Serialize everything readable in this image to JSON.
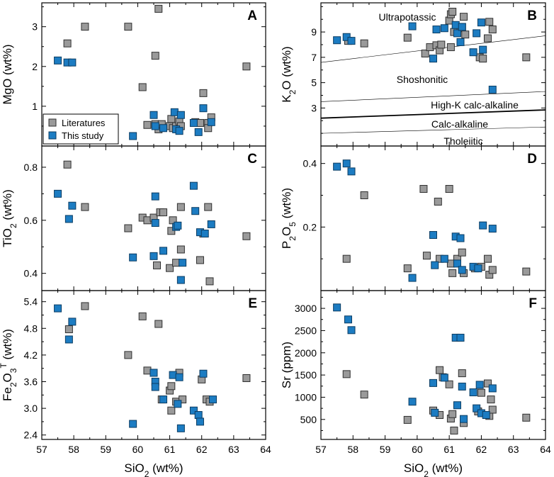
{
  "colors": {
    "literatures": "#9a9a9a",
    "this_study": "#1c7cc2"
  },
  "legend": {
    "literatures": "Literatures",
    "this_study": "This study"
  },
  "x_axis": {
    "label_main": "SiO",
    "label_sub": "2",
    "label_unit": " (wt%)",
    "ticks": [
      57,
      58,
      59,
      60,
      61,
      62,
      63,
      64
    ],
    "xlim": [
      57,
      64
    ]
  },
  "chart_data": [
    {
      "type": "scatter",
      "id": "A",
      "letter": "A",
      "ylabel": {
        "main": "MgO (wt%)"
      },
      "ylim": [
        0,
        3.6
      ],
      "yticks": [
        1,
        2,
        3
      ],
      "series": [
        {
          "name": "Literatures",
          "points": [
            [
              57.8,
              2.58
            ],
            [
              58.35,
              3.0
            ],
            [
              59.7,
              3.0
            ],
            [
              60.55,
              2.27
            ],
            [
              60.65,
              3.45
            ],
            [
              60.15,
              1.48
            ],
            [
              60.3,
              0.53
            ],
            [
              60.55,
              0.55
            ],
            [
              60.65,
              0.42
            ],
            [
              60.75,
              0.55
            ],
            [
              61.0,
              0.5
            ],
            [
              61.05,
              0.68
            ],
            [
              61.1,
              0.45
            ],
            [
              61.2,
              0.5
            ],
            [
              61.3,
              0.62
            ],
            [
              61.35,
              0.5
            ],
            [
              61.8,
              0.6
            ],
            [
              61.95,
              0.58
            ],
            [
              62.05,
              1.33
            ],
            [
              62.2,
              0.58
            ],
            [
              62.2,
              0.45
            ],
            [
              62.3,
              0.72
            ],
            [
              63.4,
              2.0
            ]
          ]
        },
        {
          "name": "This study",
          "points": [
            [
              57.5,
              2.15
            ],
            [
              57.8,
              2.1
            ],
            [
              57.95,
              2.1
            ],
            [
              59.85,
              0.25
            ],
            [
              60.5,
              0.78
            ],
            [
              60.55,
              0.5
            ],
            [
              60.8,
              0.45
            ],
            [
              61.15,
              0.85
            ],
            [
              61.2,
              0.42
            ],
            [
              61.3,
              0.38
            ],
            [
              61.35,
              0.78
            ],
            [
              61.75,
              0.58
            ],
            [
              61.9,
              0.35
            ],
            [
              62.05,
              0.95
            ],
            [
              62.3,
              0.6
            ]
          ]
        }
      ]
    },
    {
      "type": "scatter",
      "id": "B",
      "letter": "B",
      "ylabel": {
        "main": "K",
        "sub": "2",
        "tail": "O (wt%)"
      },
      "ylim": [
        0,
        11.3
      ],
      "yticks": [
        3,
        5,
        7,
        9
      ],
      "field_lines": [
        {
          "x": [
            57,
            64
          ],
          "y": [
            6.6,
            8.7
          ],
          "weight": "thin"
        },
        {
          "x": [
            57,
            64
          ],
          "y": [
            3.5,
            4.3
          ],
          "weight": "thin"
        },
        {
          "x": [
            57,
            64
          ],
          "y": [
            2.2,
            2.85
          ],
          "weight": "thick"
        },
        {
          "x": [
            57,
            64
          ],
          "y": [
            1.0,
            1.5
          ],
          "weight": "thin"
        }
      ],
      "field_labels": [
        "Ultrapotassic",
        "Shoshonitic",
        "High-K calc-alkaline",
        "Calc-alkaline",
        "Tholeiitic"
      ],
      "series": [
        {
          "name": "Literatures",
          "points": [
            [
              57.85,
              8.3
            ],
            [
              58.35,
              8.1
            ],
            [
              59.7,
              8.55
            ],
            [
              60.25,
              7.3
            ],
            [
              60.4,
              7.8
            ],
            [
              60.6,
              7.95
            ],
            [
              60.7,
              7.55
            ],
            [
              60.75,
              8.0
            ],
            [
              61.0,
              9.9
            ],
            [
              61.05,
              10.4
            ],
            [
              61.1,
              10.6
            ],
            [
              61.15,
              9.0
            ],
            [
              61.05,
              7.8
            ],
            [
              61.35,
              9.3
            ],
            [
              61.4,
              9.4
            ],
            [
              61.45,
              10.2
            ],
            [
              61.5,
              8.8
            ],
            [
              61.95,
              7.0
            ],
            [
              62.05,
              6.9
            ],
            [
              62.25,
              9.8
            ],
            [
              62.35,
              9.2
            ],
            [
              62.2,
              8.5
            ],
            [
              63.4,
              7.0
            ]
          ]
        },
        {
          "name": "This study",
          "points": [
            [
              57.5,
              8.35
            ],
            [
              57.8,
              8.6
            ],
            [
              57.95,
              8.3
            ],
            [
              59.85,
              9.45
            ],
            [
              60.5,
              6.9
            ],
            [
              60.6,
              9.2
            ],
            [
              60.85,
              9.3
            ],
            [
              61.2,
              9.55
            ],
            [
              61.25,
              8.9
            ],
            [
              61.35,
              8.2
            ],
            [
              61.4,
              9.4
            ],
            [
              61.75,
              7.4
            ],
            [
              61.85,
              8.9
            ],
            [
              62.0,
              9.75
            ],
            [
              62.05,
              7.6
            ],
            [
              62.35,
              4.45
            ]
          ]
        }
      ]
    },
    {
      "type": "scatter",
      "id": "C",
      "letter": "C",
      "ylabel": {
        "main": "TiO",
        "sub": "2",
        "tail": " (wt%)"
      },
      "ylim": [
        0.335,
        0.88
      ],
      "yticks": [
        0.4,
        0.6,
        0.8
      ],
      "series": [
        {
          "name": "Literatures",
          "points": [
            [
              57.8,
              0.81
            ],
            [
              58.35,
              0.65
            ],
            [
              59.7,
              0.57
            ],
            [
              60.15,
              0.61
            ],
            [
              60.3,
              0.6
            ],
            [
              60.5,
              0.61
            ],
            [
              60.6,
              0.43
            ],
            [
              60.7,
              0.63
            ],
            [
              60.8,
              0.63
            ],
            [
              61.0,
              0.42
            ],
            [
              61.05,
              0.56
            ],
            [
              61.1,
              0.6
            ],
            [
              61.2,
              0.44
            ],
            [
              61.35,
              0.49
            ],
            [
              61.35,
              0.65
            ],
            [
              61.95,
              0.45
            ],
            [
              62.05,
              0.55
            ],
            [
              62.2,
              0.65
            ],
            [
              62.25,
              0.37
            ],
            [
              63.4,
              0.54
            ]
          ]
        },
        {
          "name": "This study",
          "points": [
            [
              57.5,
              0.7
            ],
            [
              57.85,
              0.605
            ],
            [
              57.95,
              0.655
            ],
            [
              59.85,
              0.46
            ],
            [
              60.5,
              0.465
            ],
            [
              60.55,
              0.69
            ],
            [
              60.55,
              0.59
            ],
            [
              60.8,
              0.485
            ],
            [
              61.2,
              0.575
            ],
            [
              61.25,
              0.58
            ],
            [
              61.35,
              0.375
            ],
            [
              61.4,
              0.44
            ],
            [
              61.75,
              0.73
            ],
            [
              61.8,
              0.635
            ],
            [
              61.95,
              0.555
            ],
            [
              62.1,
              0.55
            ],
            [
              62.3,
              0.585
            ]
          ]
        }
      ]
    },
    {
      "type": "scatter",
      "id": "D",
      "letter": "D",
      "ylabel": {
        "main": "P",
        "sub": "2",
        "tail": "O",
        "sub2": "5",
        "tail2": " (wt%)"
      },
      "ylim": [
        0.0,
        0.455
      ],
      "yticks": [
        0.2,
        0.4
      ],
      "series": [
        {
          "name": "Literatures",
          "points": [
            [
              57.8,
              0.1
            ],
            [
              58.35,
              0.3
            ],
            [
              59.7,
              0.07
            ],
            [
              60.2,
              0.32
            ],
            [
              60.3,
              0.11
            ],
            [
              60.65,
              0.28
            ],
            [
              60.7,
              0.1
            ],
            [
              61.0,
              0.32
            ],
            [
              61.05,
              0.085
            ],
            [
              61.1,
              0.055
            ],
            [
              61.25,
              0.1
            ],
            [
              61.4,
              0.12
            ],
            [
              61.45,
              0.055
            ],
            [
              61.8,
              0.07
            ],
            [
              62.0,
              0.075
            ],
            [
              62.2,
              0.1
            ],
            [
              62.25,
              0.05
            ],
            [
              62.35,
              0.065
            ],
            [
              63.4,
              0.06
            ]
          ]
        },
        {
          "name": "This study",
          "points": [
            [
              57.5,
              0.39
            ],
            [
              57.8,
              0.4
            ],
            [
              57.95,
              0.375
            ],
            [
              59.85,
              0.04
            ],
            [
              60.5,
              0.175
            ],
            [
              60.55,
              0.08
            ],
            [
              60.85,
              0.1
            ],
            [
              61.2,
              0.17
            ],
            [
              61.25,
              0.085
            ],
            [
              61.35,
              0.165
            ],
            [
              61.4,
              0.065
            ],
            [
              61.75,
              0.075
            ],
            [
              61.9,
              0.07
            ],
            [
              62.05,
              0.205
            ],
            [
              62.35,
              0.195
            ]
          ]
        }
      ]
    },
    {
      "type": "scatter",
      "id": "E",
      "letter": "E",
      "ylabel": {
        "main": "Fe",
        "sub": "2",
        "tail": "O",
        "sub2": "3",
        "sup": "T",
        "tail2": " (wt%)"
      },
      "ylim": [
        2.3,
        5.65
      ],
      "yticks": [
        2.4,
        3.0,
        3.6,
        4.2,
        4.8,
        5.4
      ],
      "series": [
        {
          "name": "Literatures",
          "points": [
            [
              57.85,
              4.78
            ],
            [
              58.35,
              5.3
            ],
            [
              59.7,
              4.2
            ],
            [
              60.15,
              5.07
            ],
            [
              60.3,
              3.85
            ],
            [
              60.5,
              3.8
            ],
            [
              60.65,
              4.9
            ],
            [
              60.75,
              3.2
            ],
            [
              61.0,
              3.4
            ],
            [
              61.05,
              2.95
            ],
            [
              61.05,
              3.5
            ],
            [
              61.2,
              3.15
            ],
            [
              61.3,
              3.8
            ],
            [
              61.4,
              3.2
            ],
            [
              62.0,
              3.65
            ],
            [
              62.15,
              3.2
            ],
            [
              62.25,
              3.15
            ],
            [
              63.4,
              3.68
            ]
          ]
        },
        {
          "name": "This study",
          "points": [
            [
              57.5,
              5.25
            ],
            [
              57.85,
              4.55
            ],
            [
              57.95,
              4.95
            ],
            [
              59.85,
              2.65
            ],
            [
              60.5,
              3.8
            ],
            [
              60.55,
              3.6
            ],
            [
              60.55,
              3.48
            ],
            [
              60.8,
              3.2
            ],
            [
              61.1,
              3.75
            ],
            [
              61.25,
              3.1
            ],
            [
              61.3,
              3.7
            ],
            [
              61.35,
              2.55
            ],
            [
              61.75,
              2.95
            ],
            [
              61.9,
              2.85
            ],
            [
              61.95,
              2.7
            ],
            [
              62.05,
              3.78
            ],
            [
              62.35,
              3.2
            ]
          ]
        }
      ]
    },
    {
      "type": "scatter",
      "id": "F",
      "letter": "F",
      "ylabel": {
        "main": "Sr (ppm)"
      },
      "ylim": [
        50,
        3400
      ],
      "yticks": [
        500,
        1000,
        1500,
        2000,
        2500,
        3000
      ],
      "series": [
        {
          "name": "Literatures",
          "points": [
            [
              57.8,
              1520
            ],
            [
              58.35,
              1060
            ],
            [
              59.7,
              490
            ],
            [
              60.5,
              700
            ],
            [
              60.7,
              1610
            ],
            [
              60.7,
              600
            ],
            [
              60.8,
              1450
            ],
            [
              61.0,
              1290
            ],
            [
              61.05,
              520
            ],
            [
              61.1,
              620
            ],
            [
              61.15,
              250
            ],
            [
              61.4,
              1540
            ],
            [
              61.45,
              420
            ],
            [
              61.9,
              680
            ],
            [
              62.0,
              1100
            ],
            [
              62.2,
              1310
            ],
            [
              62.25,
              580
            ],
            [
              62.3,
              950
            ],
            [
              62.35,
              720
            ],
            [
              63.4,
              540
            ]
          ]
        },
        {
          "name": "This study",
          "points": [
            [
              57.5,
              3020
            ],
            [
              57.85,
              2750
            ],
            [
              57.95,
              2510
            ],
            [
              59.85,
              900
            ],
            [
              60.5,
              1320
            ],
            [
              60.55,
              650
            ],
            [
              60.85,
              1440
            ],
            [
              61.2,
              2340
            ],
            [
              61.25,
              820
            ],
            [
              61.35,
              2340
            ],
            [
              61.4,
              1240
            ],
            [
              61.45,
              510
            ],
            [
              61.75,
              1110
            ],
            [
              61.85,
              750
            ],
            [
              61.95,
              1280
            ],
            [
              62.0,
              640
            ],
            [
              62.15,
              600
            ],
            [
              62.35,
              1200
            ]
          ]
        }
      ]
    }
  ]
}
